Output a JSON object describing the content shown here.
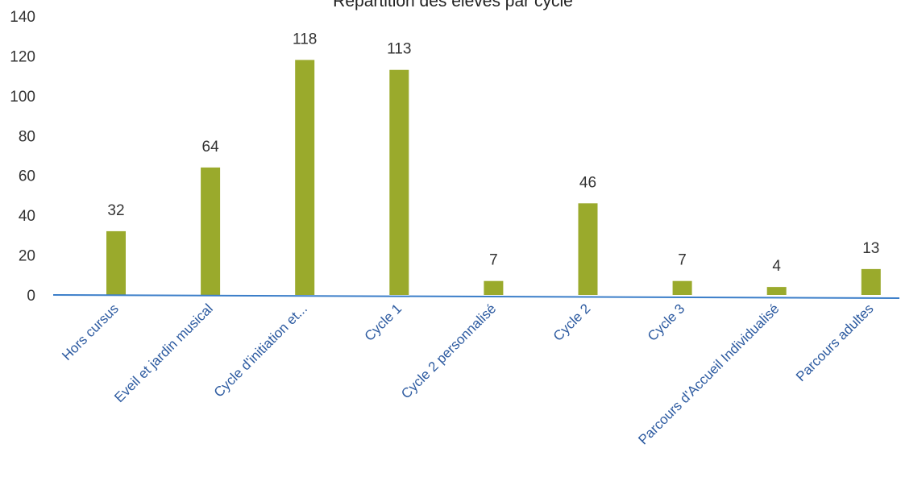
{
  "chart_data": {
    "type": "bar",
    "title": "Répartition des élèves par cycle",
    "categories": [
      "Hors cursus",
      "Eveil et jardin musical",
      "Cycle d'initiation et...",
      "Cycle 1",
      "Cycle 2 personnalisé",
      "Cycle 2",
      "Cycle 3",
      "Parcours d'Accueil Individualisé",
      "Parcours adultes"
    ],
    "values": [
      32,
      64,
      118,
      113,
      7,
      46,
      7,
      4,
      13
    ],
    "data_labels": [
      "32",
      "64",
      "118",
      "113",
      "7",
      "46",
      "7",
      "4",
      "13"
    ],
    "yticks": [
      "0",
      "20",
      "40",
      "60",
      "80",
      "100",
      "120",
      "140"
    ],
    "ylim": [
      0,
      140
    ],
    "xlabel": "",
    "ylabel": "",
    "legend": "none",
    "grid": false,
    "colors": {
      "bar": "#9aaa2c",
      "axis": "#3b7ec9",
      "xlabel_text": "#2c5aa0"
    }
  }
}
